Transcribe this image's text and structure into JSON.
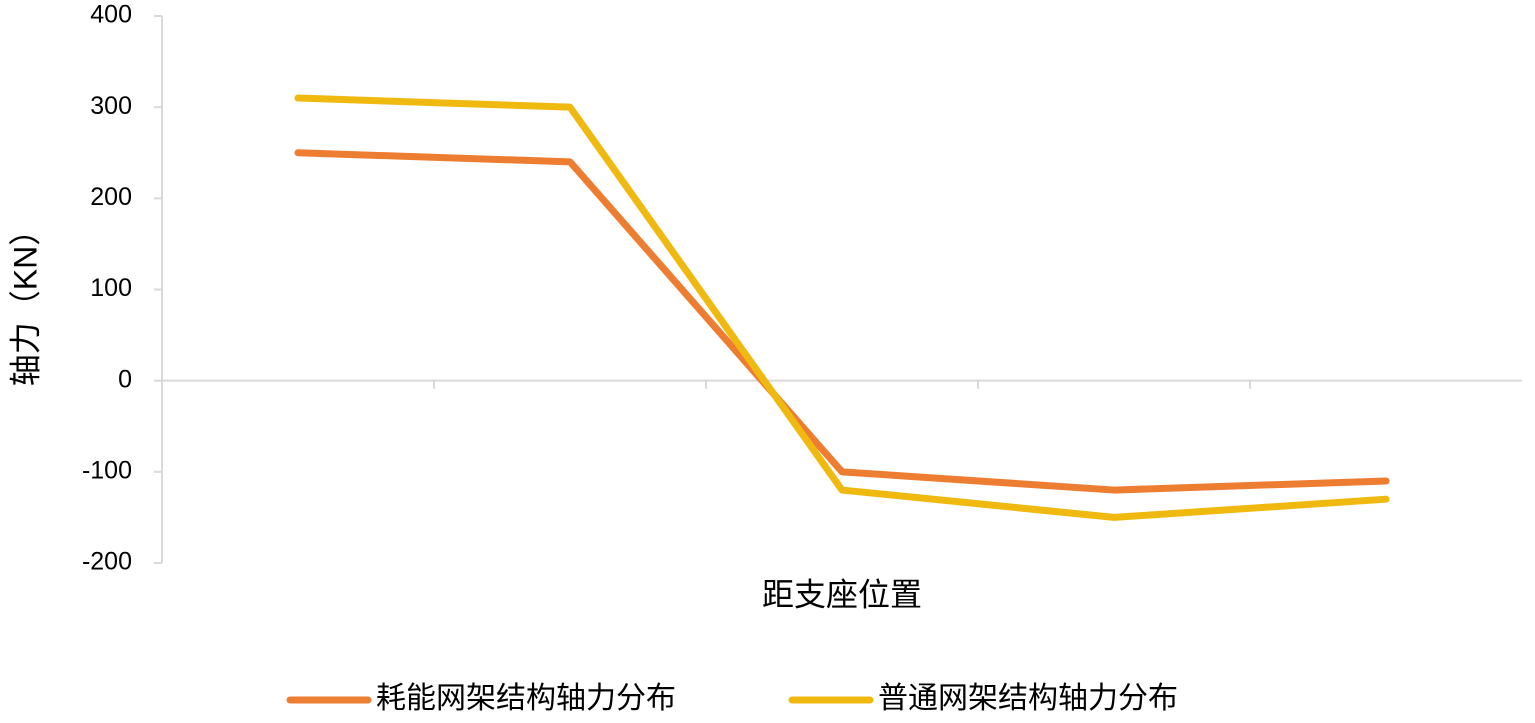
{
  "chart_data": {
    "type": "line",
    "y_label": "轴力（KN）",
    "x_label": "距支座位置",
    "categories": [
      null,
      null,
      null,
      null,
      null
    ],
    "series": [
      {
        "name": "耗能网架结构轴力分布",
        "color": "#ED7D31",
        "values": [
          250,
          240,
          -100,
          -120,
          -110
        ]
      },
      {
        "name": "普通网架结构轴力分布",
        "color": "#F0B910",
        "values": [
          310,
          300,
          -120,
          -150,
          -130
        ]
      }
    ],
    "ylim": [
      -200,
      400
    ],
    "yticks": [
      -200,
      -100,
      0,
      100,
      200,
      300,
      400
    ]
  }
}
